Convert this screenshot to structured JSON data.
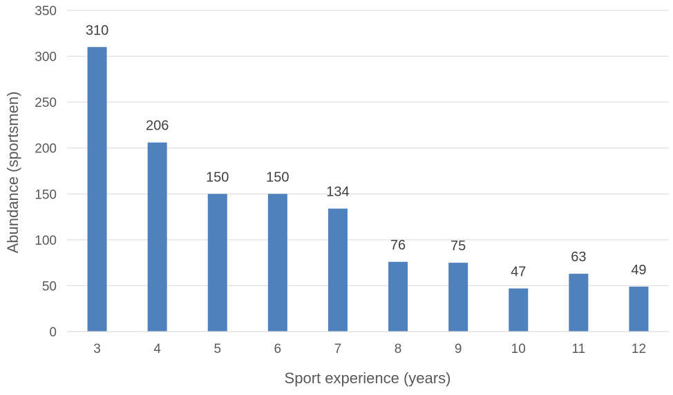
{
  "chart_data": {
    "type": "bar",
    "title": "",
    "xlabel": "Sport experience (years)",
    "ylabel": "Abundance (sportsmen)",
    "categories": [
      "3",
      "4",
      "5",
      "6",
      "7",
      "8",
      "9",
      "10",
      "11",
      "12"
    ],
    "values": [
      310,
      206,
      150,
      150,
      134,
      76,
      75,
      47,
      63,
      49
    ],
    "data_labels": [
      "310",
      "206",
      "150",
      "150",
      "134",
      "76",
      "75",
      "47",
      "63",
      "49"
    ],
    "ylim": [
      0,
      350
    ],
    "yticks": [
      0,
      50,
      100,
      150,
      200,
      250,
      300,
      350
    ],
    "ytick_labels": [
      "0",
      "50",
      "100",
      "150",
      "200",
      "250",
      "300",
      "350"
    ],
    "grid": true,
    "legend": "none",
    "bar_color": "#4f81bd",
    "grid_color": "#d9d9d9",
    "text_color": "#595959"
  }
}
